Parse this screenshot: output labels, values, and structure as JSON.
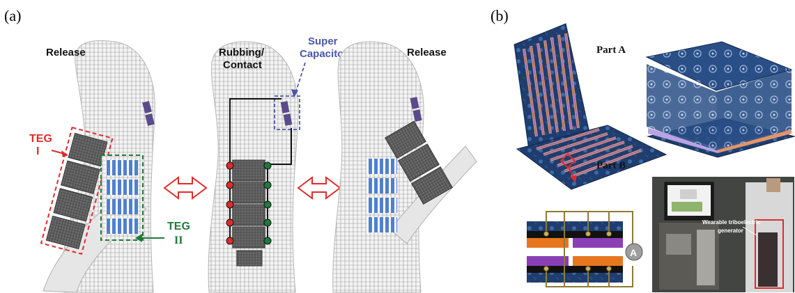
{
  "panels": {
    "a": {
      "label": "(a)"
    },
    "b": {
      "label": "(b)"
    }
  },
  "panel_a": {
    "release_left": "Release",
    "rubbing_line1": "Rubbing/",
    "rubbing_line2": "Contact",
    "release_right": "Release",
    "super_line1": "Super",
    "super_line2": "Capacitor",
    "teg1_line1": "TEG",
    "teg1_line2": "I",
    "teg2_line1": "TEG",
    "teg2_line2": "II"
  },
  "panel_b": {
    "part_a": "Part A",
    "part_b": "Part B",
    "ammeter": "A",
    "photo_line1": "Wearable triboelectric",
    "photo_line2": "generator"
  },
  "colors": {
    "red": "#e02b2b",
    "green": "#1f7a3a",
    "blue_label": "#4a55a8",
    "stripe_blue": "#4f7fd0",
    "orange": "#e8761e",
    "purple": "#8a3fb5",
    "fabric": "#1f3d6e"
  }
}
